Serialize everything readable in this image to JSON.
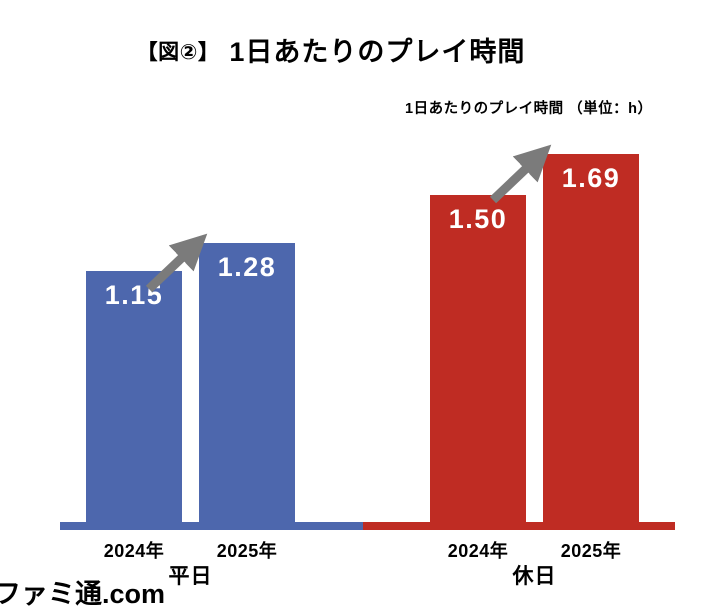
{
  "title": {
    "prefix": "【図②】",
    "text": "1日あたりのプレイ時間"
  },
  "subtitle": "1日あたりのプレイ時間 （単位：h）",
  "watermark": "ファミ通.com",
  "colors": {
    "weekday_blue": "#4D67AD",
    "holiday_red": "#BF2C23",
    "arrow_gray": "#7b7b7b",
    "value_label": "#ffffff",
    "text": "#000000",
    "watermark_orange": "#F9A82C"
  },
  "chart_data": {
    "type": "bar",
    "title": "【図②】 1日あたりのプレイ時間",
    "subtitle": "1日あたりのプレイ時間 （単位：h）",
    "unit": "h",
    "ylim": [
      0,
      1.8
    ],
    "grid": false,
    "legend": "none",
    "value_label_decimals": 2,
    "groups": [
      {
        "label": "平日",
        "color": "#4D67AD",
        "categories": [
          "2024年",
          "2025年"
        ],
        "values": [
          1.15,
          1.28
        ],
        "annotation": "increase-arrow"
      },
      {
        "label": "休日",
        "color": "#BF2C23",
        "categories": [
          "2024年",
          "2025年"
        ],
        "values": [
          1.5,
          1.69
        ],
        "annotation": "increase-arrow"
      }
    ]
  }
}
